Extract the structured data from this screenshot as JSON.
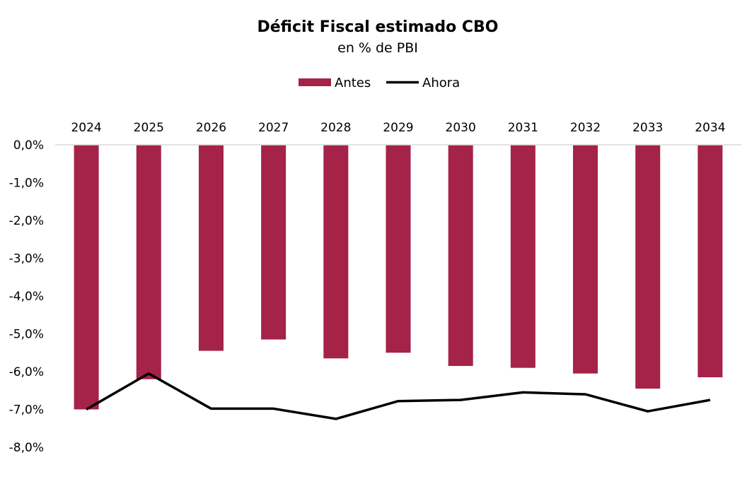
{
  "chart_data": {
    "type": "bar",
    "title": "Déficit Fiscal estimado CBO",
    "subtitle": "en % de PBI",
    "categories": [
      "2024",
      "2025",
      "2026",
      "2027",
      "2028",
      "2029",
      "2030",
      "2031",
      "2032",
      "2033",
      "2034"
    ],
    "series": [
      {
        "name": "Antes",
        "type": "bar",
        "color": "#A52248",
        "values": [
          -7.0,
          -6.2,
          -5.45,
          -5.15,
          -5.65,
          -5.5,
          -5.85,
          -5.9,
          -6.05,
          -6.45,
          -6.15
        ]
      },
      {
        "name": "Ahora",
        "type": "line",
        "color": "#000000",
        "values": [
          -7.0,
          -6.05,
          -6.98,
          -6.98,
          -7.25,
          -6.78,
          -6.75,
          -6.55,
          -6.6,
          -7.05,
          -6.75
        ]
      }
    ],
    "ylim": [
      -8.0,
      0.0
    ],
    "yticks": [
      0,
      -1,
      -2,
      -3,
      -4,
      -5,
      -6,
      -7,
      -8
    ],
    "ytick_labels": [
      "0,0%",
      "-1,0%",
      "-2,0%",
      "-3,0%",
      "-4,0%",
      "-5,0%",
      "-6,0%",
      "-7,0%",
      "-8,0%"
    ],
    "xaxis_position": "top",
    "legend_position": "top-center",
    "grid": false
  }
}
